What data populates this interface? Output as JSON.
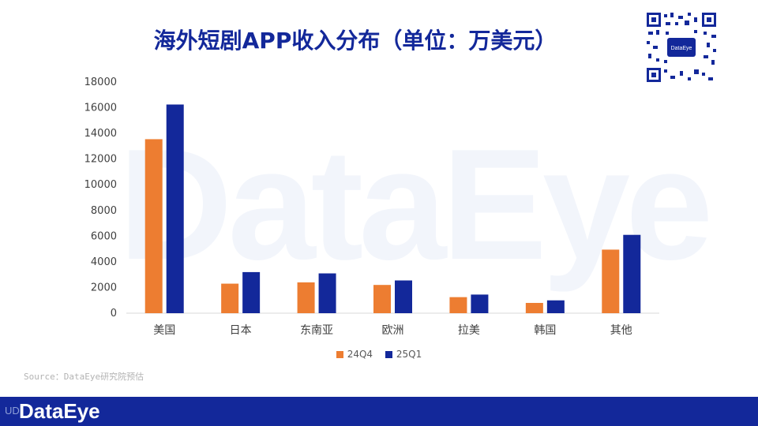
{
  "title": "海外短剧APP收入分布（单位：万美元）",
  "watermark": "DataEye",
  "qr_label": "DataEye",
  "source": "Source：DataEye研究院预估",
  "footer": {
    "logo": "DataEye",
    "mark": "UD"
  },
  "colors": {
    "series_24Q4": "#ed7d31",
    "series_25Q1": "#13289a",
    "brand": "#13289a"
  },
  "chart_data": {
    "type": "bar",
    "title": "海外短剧APP收入分布（单位：万美元）",
    "categories": [
      "美国",
      "日本",
      "东南亚",
      "欧洲",
      "拉美",
      "韩国",
      "其他"
    ],
    "series": [
      {
        "name": "24Q4",
        "values": [
          13550,
          2300,
          2400,
          2200,
          1250,
          800,
          4950
        ]
      },
      {
        "name": "25Q1",
        "values": [
          16250,
          3200,
          3100,
          2550,
          1450,
          1000,
          6100
        ]
      }
    ],
    "y_ticks": [
      "0",
      "2000",
      "4000",
      "6000",
      "8000",
      "10000",
      "12000",
      "14000",
      "16000",
      "18000"
    ],
    "ylim": [
      0,
      18000
    ],
    "grid": false,
    "legend_position": "bottom",
    "xlabel": "",
    "ylabel": ""
  }
}
